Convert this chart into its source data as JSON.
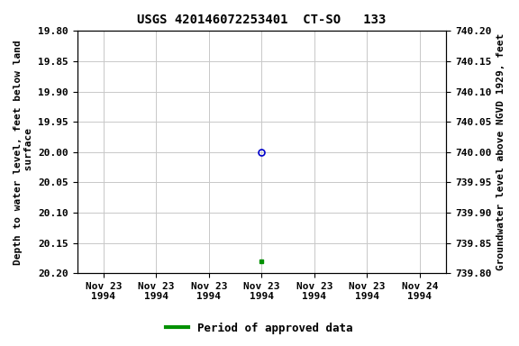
{
  "title": "USGS 420146072253401  CT-SO   133",
  "ylabel_left": "Depth to water level, feet below land\n surface",
  "ylabel_right": "Groundwater level above NGVD 1929, feet",
  "ylim_left_top": 19.8,
  "ylim_left_bottom": 20.2,
  "ylim_right_top": 740.2,
  "ylim_right_bottom": 739.8,
  "y_ticks_left": [
    19.8,
    19.85,
    19.9,
    19.95,
    20.0,
    20.05,
    20.1,
    20.15,
    20.2
  ],
  "y_ticks_right": [
    740.2,
    740.15,
    740.1,
    740.05,
    740.0,
    739.95,
    739.9,
    739.85,
    739.8
  ],
  "point_open_x": 12.0,
  "point_open_y": 20.0,
  "point_open_color": "#0000cc",
  "point_filled_x": 12.0,
  "point_filled_y": 20.18,
  "point_filled_color": "#009000",
  "x_tick_positions": [
    0,
    4,
    8,
    12,
    16,
    20,
    24
  ],
  "x_tick_labels": [
    "Nov 23\n1994",
    "Nov 23\n1994",
    "Nov 23\n1994",
    "Nov 23\n1994",
    "Nov 23\n1994",
    "Nov 23\n1994",
    "Nov 24\n1994"
  ],
  "xlim_min": -2,
  "xlim_max": 26,
  "legend_label": "Period of approved data",
  "legend_color": "#009000",
  "background_color": "#ffffff",
  "grid_color": "#c8c8c8",
  "title_fontsize": 10,
  "label_fontsize": 8,
  "tick_fontsize": 8,
  "legend_fontsize": 9
}
